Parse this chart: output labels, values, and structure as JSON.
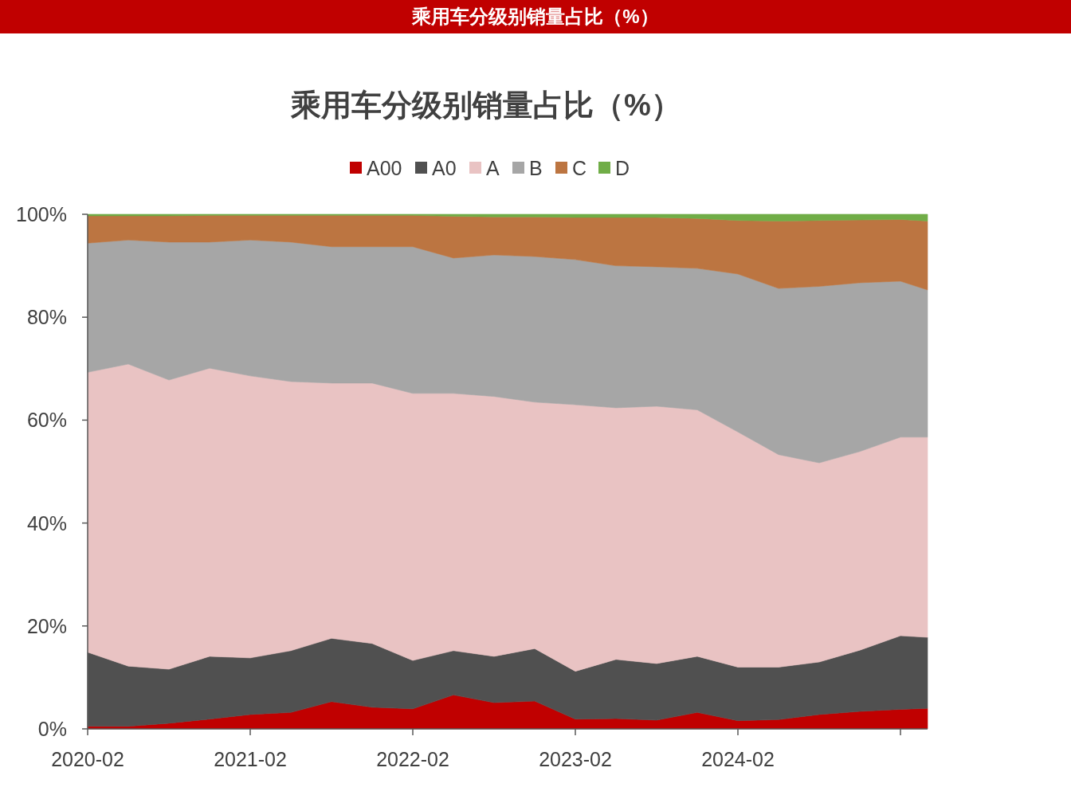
{
  "chart_data": {
    "type": "area",
    "stacked": true,
    "title": "乘用车分级别销量占比（%）",
    "annotations": [
      "乘用车分级别销量占比（%）"
    ],
    "x": [
      "2020-02",
      "2020-05",
      "2020-08",
      "2020-11",
      "2021-02",
      "2021-05",
      "2021-08",
      "2021-11",
      "2022-02",
      "2022-05",
      "2022-08",
      "2022-11",
      "2023-02",
      "2023-05",
      "2023-08",
      "2023-11",
      "2024-02",
      "2024-05",
      "2024-08",
      "2024-11",
      "2025-02",
      "2025-04"
    ],
    "series": [
      {
        "name": "A00",
        "color": "#c00000",
        "values": [
          0.5,
          0.5,
          1.1,
          1.9,
          2.8,
          3.2,
          5.3,
          4.2,
          3.9,
          6.6,
          5.1,
          5.4,
          1.9,
          2.0,
          1.7,
          3.2,
          1.6,
          1.8,
          2.8,
          3.4,
          3.8,
          4.0
        ]
      },
      {
        "name": "A0",
        "color": "#505050",
        "values": [
          14.4,
          11.7,
          10.5,
          12.2,
          11.0,
          12.0,
          12.3,
          12.4,
          9.4,
          8.6,
          9.0,
          10.2,
          9.3,
          11.5,
          11.0,
          10.9,
          10.4,
          10.2,
          10.2,
          11.9,
          14.3,
          13.8
        ]
      },
      {
        "name": "A",
        "color": "#e9c3c3",
        "values": [
          54.4,
          58.7,
          56.2,
          56.0,
          54.8,
          52.3,
          49.6,
          50.6,
          51.9,
          50.0,
          50.5,
          47.9,
          51.8,
          48.9,
          50.0,
          47.9,
          45.7,
          41.3,
          38.7,
          38.6,
          38.6,
          38.9
        ]
      },
      {
        "name": "B",
        "color": "#a6a6a6",
        "values": [
          25.1,
          24.1,
          26.8,
          24.5,
          26.4,
          27.1,
          26.5,
          26.5,
          28.5,
          26.3,
          27.5,
          28.3,
          28.2,
          27.6,
          27.1,
          27.5,
          30.7,
          32.3,
          34.3,
          32.8,
          30.3,
          28.6
        ]
      },
      {
        "name": "C",
        "color": "#bc7541",
        "values": [
          5.3,
          4.7,
          5.1,
          5.2,
          4.8,
          5.2,
          6.1,
          6.1,
          6.1,
          8.1,
          7.4,
          7.7,
          8.2,
          9.4,
          9.6,
          9.7,
          10.4,
          13.1,
          12.8,
          12.2,
          12.0,
          13.4
        ]
      },
      {
        "name": "D",
        "color": "#70ad47",
        "values": [
          0.3,
          0.3,
          0.3,
          0.2,
          0.2,
          0.2,
          0.2,
          0.2,
          0.2,
          0.4,
          0.5,
          0.5,
          0.6,
          0.6,
          0.6,
          0.8,
          1.2,
          1.3,
          1.2,
          1.1,
          1.0,
          1.3
        ]
      }
    ],
    "xlim": [
      "2020-02",
      "2025-04"
    ],
    "xticks": [
      "2020-02",
      "2021-02",
      "2022-02",
      "2023-02",
      "2024-02",
      {
        "value": "2025-02",
        "label": null
      }
    ],
    "ylim": [
      0,
      100
    ],
    "yticks": [
      {
        "value": 0,
        "label": "0%"
      },
      {
        "value": 20,
        "label": "20%"
      },
      {
        "value": 40,
        "label": "40%"
      },
      {
        "value": 60,
        "label": "60%"
      },
      {
        "value": 80,
        "label": "80%"
      },
      {
        "value": 100,
        "label": "100%"
      }
    ],
    "grid": false,
    "legend": "top"
  }
}
